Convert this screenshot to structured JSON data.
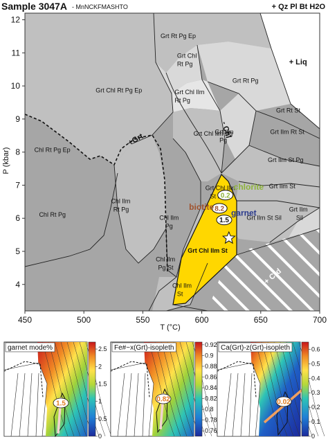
{
  "header": {
    "title": "Sample 3047A",
    "subtitle": "- MnNCKFMASHTO",
    "assemblage": "+ Qz Pl Bt H2O"
  },
  "colors": {
    "background": "#ffffff",
    "field_dark": "#8c8c8c",
    "field_mid": "#a6a6a6",
    "field_light": "#c0c0c0",
    "field_pale": "#d9d9d9",
    "field_lightest": "#e6e6e6",
    "peak_field": "#ffd700",
    "chlorite_label": "#8db33a",
    "biotite_label": "#a0522d",
    "garnet_label": "#2a3a8c",
    "isopleth_value": "#e07a1f"
  },
  "chart_data": [
    {
      "type": "phase-diagram",
      "xlabel": "T (°C)",
      "ylabel": "P (kbar)",
      "xlim": [
        450,
        700
      ],
      "ylim": [
        3.2,
        12.2
      ],
      "xticks": [
        "450",
        "500",
        "550",
        "600",
        "650",
        "700"
      ],
      "yticks": [
        "4",
        "5",
        "6",
        "7",
        "8",
        "9",
        "10",
        "11",
        "12"
      ],
      "field_labels": [
        {
          "text": "Grt Rt Pg Ep",
          "x": 565,
          "y": 11.45
        },
        {
          "text": "Grt Chl",
          "x": 579,
          "y": 10.85
        },
        {
          "text": "Rt Pg",
          "x": 579,
          "y": 10.6
        },
        {
          "text": "Grt Chl Ilm",
          "x": 577,
          "y": 9.75
        },
        {
          "text": "Rt Pg",
          "x": 577,
          "y": 9.5
        },
        {
          "text": "Grt Rt Pg",
          "x": 626,
          "y": 10.1
        },
        {
          "text": "Grt Chl Rt Pg Ep",
          "x": 510,
          "y": 9.8
        },
        {
          "text": "Grt Chl Ilm Pg",
          "x": 593,
          "y": 8.5
        },
        {
          "text": "Grt Ilm",
          "x": 611,
          "y": 8.55
        },
        {
          "text": "Pg",
          "x": 615,
          "y": 8.3
        },
        {
          "text": "Grt Rt St",
          "x": 663,
          "y": 9.2
        },
        {
          "text": "Grt Ilm Rt St",
          "x": 658,
          "y": 8.55
        },
        {
          "text": "Chl Rt Pg Ep",
          "x": 458,
          "y": 8.0
        },
        {
          "text": "Grt Ilm St Pg",
          "x": 656,
          "y": 7.7
        },
        {
          "text": "Grt Ilm St",
          "x": 657,
          "y": 6.9
        },
        {
          "text": "Grt Chl Ilm",
          "x": 603,
          "y": 6.85
        },
        {
          "text": "St Pg",
          "x": 607,
          "y": 6.6
        },
        {
          "text": "Chl Rt Pg",
          "x": 462,
          "y": 6.05
        },
        {
          "text": "Chl Ilm",
          "x": 523,
          "y": 6.45
        },
        {
          "text": "Rt Pg",
          "x": 525,
          "y": 6.2
        },
        {
          "text": "Chl Ilm",
          "x": 564,
          "y": 5.95
        },
        {
          "text": "Pg",
          "x": 569,
          "y": 5.7
        },
        {
          "text": "Grt Ilm St Sil",
          "x": 638,
          "y": 5.95
        },
        {
          "text": "Grt Ilm",
          "x": 674,
          "y": 6.2
        },
        {
          "text": "Sil",
          "x": 680,
          "y": 5.95
        },
        {
          "text": "Chl Ilm",
          "x": 561,
          "y": 4.7
        },
        {
          "text": "Pg St",
          "x": 563,
          "y": 4.45
        },
        {
          "text": "Chl Ilm",
          "x": 575,
          "y": 3.9
        },
        {
          "text": "St",
          "x": 579,
          "y": 3.65
        }
      ],
      "reaction_labels": [
        {
          "text": "+ Liq",
          "x": 674,
          "y": 10.65
        },
        {
          "text": "+Grt",
          "x": 539,
          "y": 8.2
        },
        {
          "text": "- Chl",
          "x": 617,
          "y": 8.9
        },
        {
          "text": "+ Crd",
          "x": 655,
          "y": 4.0
        }
      ],
      "peak_field": {
        "label": "Grt Chl Ilm St",
        "polygon": [
          [
            609,
            7.15
          ],
          [
            615,
            6.9
          ],
          [
            622,
            6.35
          ],
          [
            622,
            5.0
          ],
          [
            583,
            3.55
          ],
          [
            582,
            3.5
          ],
          [
            588,
            4.95
          ]
        ]
      },
      "peak_point": {
        "x": 623,
        "y": 5.4
      },
      "isopleth_labels": [
        {
          "name": "chlorite",
          "value": "0.2",
          "x": 630,
          "y": 6.85
        },
        {
          "name": "biotite",
          "value": "8.2",
          "x": 604,
          "y": 6.2
        },
        {
          "name": "garnet",
          "value": "1.5",
          "x": 646,
          "y": 5.8
        }
      ],
      "isopleth_values": [
        "0.2",
        "8.2",
        "1.5"
      ]
    },
    {
      "type": "heatmap",
      "title": "garnet mode%",
      "colorbar_ticks": [
        "2.5",
        "2",
        "1.5",
        "1",
        "0.5",
        "0"
      ],
      "colorbar_range": [
        0,
        2.7
      ],
      "annotation": "1.5"
    },
    {
      "type": "heatmap",
      "title": "Fe#~x(Grt)-isopleth",
      "colorbar_ticks": [
        "0.92",
        "0.9",
        "0.88",
        "0.86",
        "0.84",
        "0.82",
        "0.8",
        "0.78",
        "0.76"
      ],
      "colorbar_range": [
        0.75,
        0.925
      ],
      "annotation": "0.82"
    },
    {
      "type": "heatmap",
      "title": "Ca(Grt)-z(Grt)-isopleth",
      "colorbar_ticks": [
        "0.6",
        "0.5",
        "0.4",
        "0.3",
        "0.2",
        "0.1",
        "0"
      ],
      "colorbar_range": [
        0,
        0.65
      ],
      "annotation": "0.02"
    }
  ]
}
